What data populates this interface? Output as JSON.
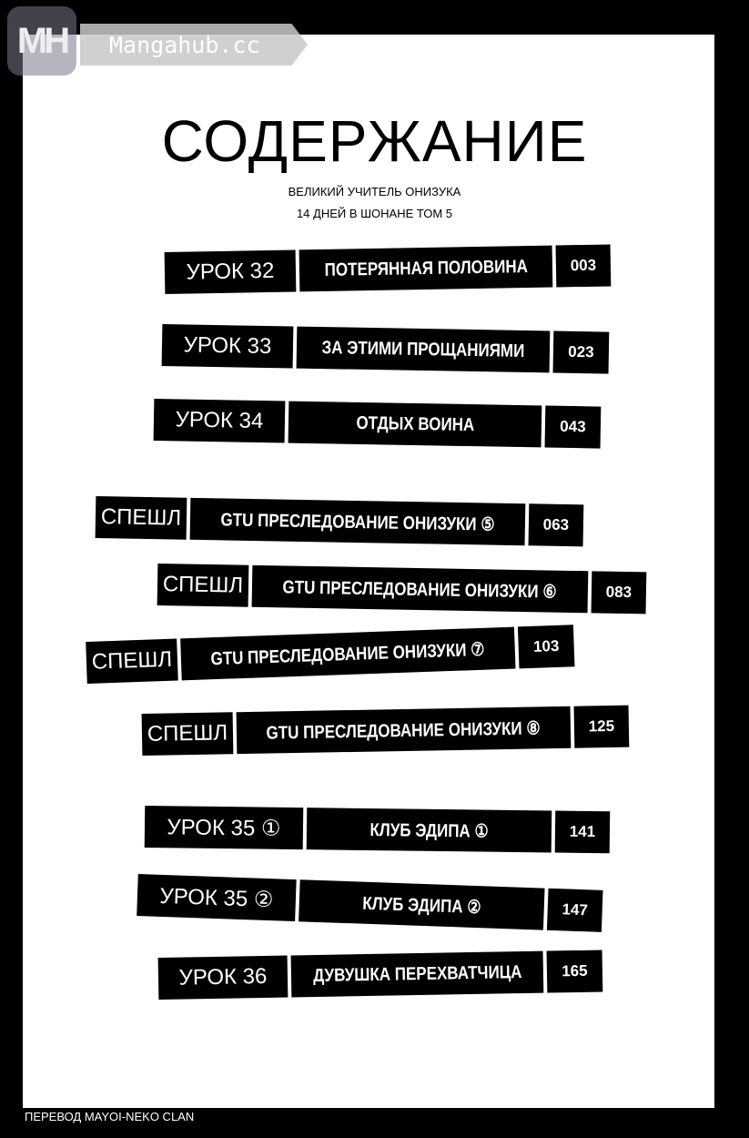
{
  "watermark": {
    "logo": "MH",
    "site": "Mangahub.cc"
  },
  "heading": "СОДЕРЖАНИЕ",
  "subtitle_1": "ВЕЛИКИЙ УЧИТЕЛЬ ОНИЗУКА",
  "subtitle_2": "14 ДНЕЙ В ШОНАНЕ ТОМ 5",
  "entries": [
    {
      "label": "УРОК 32",
      "title": "ПОТЕРЯННАЯ ПОЛОВИНА",
      "page": "003"
    },
    {
      "label": "УРОК 33",
      "title": "ЗА ЭТИМИ ПРОЩАНИЯМИ",
      "page": "023"
    },
    {
      "label": "УРОК 34",
      "title": "ОТДЫХ ВОИНА",
      "page": "043"
    },
    {
      "label": "СПЕШЛ",
      "title": "GTU ПРЕСЛЕДОВАНИЕ ОНИЗУКИ ⑤",
      "page": "063"
    },
    {
      "label": "СПЕШЛ",
      "title": "GTU ПРЕСЛЕДОВАНИЕ ОНИЗУКИ ⑥",
      "page": "083"
    },
    {
      "label": "СПЕШЛ",
      "title": "GTU ПРЕСЛЕДОВАНИЕ ОНИЗУКИ ⑦",
      "page": "103"
    },
    {
      "label": "СПЕШЛ",
      "title": "GTU ПРЕСЛЕДОВАНИЕ ОНИЗУКИ ⑧",
      "page": "125"
    },
    {
      "label": "УРОК 35 ①",
      "title": "КЛУБ ЭДИПА ①",
      "page": "141"
    },
    {
      "label": "УРОК 35 ②",
      "title": "КЛУБ ЭДИПА ②",
      "page": "147"
    },
    {
      "label": "УРОК 36",
      "title": "ДУВУШКА ПЕРЕХВАТЧИЦА",
      "page": "165"
    }
  ],
  "credit": "ПЕРЕВОД MAYOI-NEKO CLAN"
}
